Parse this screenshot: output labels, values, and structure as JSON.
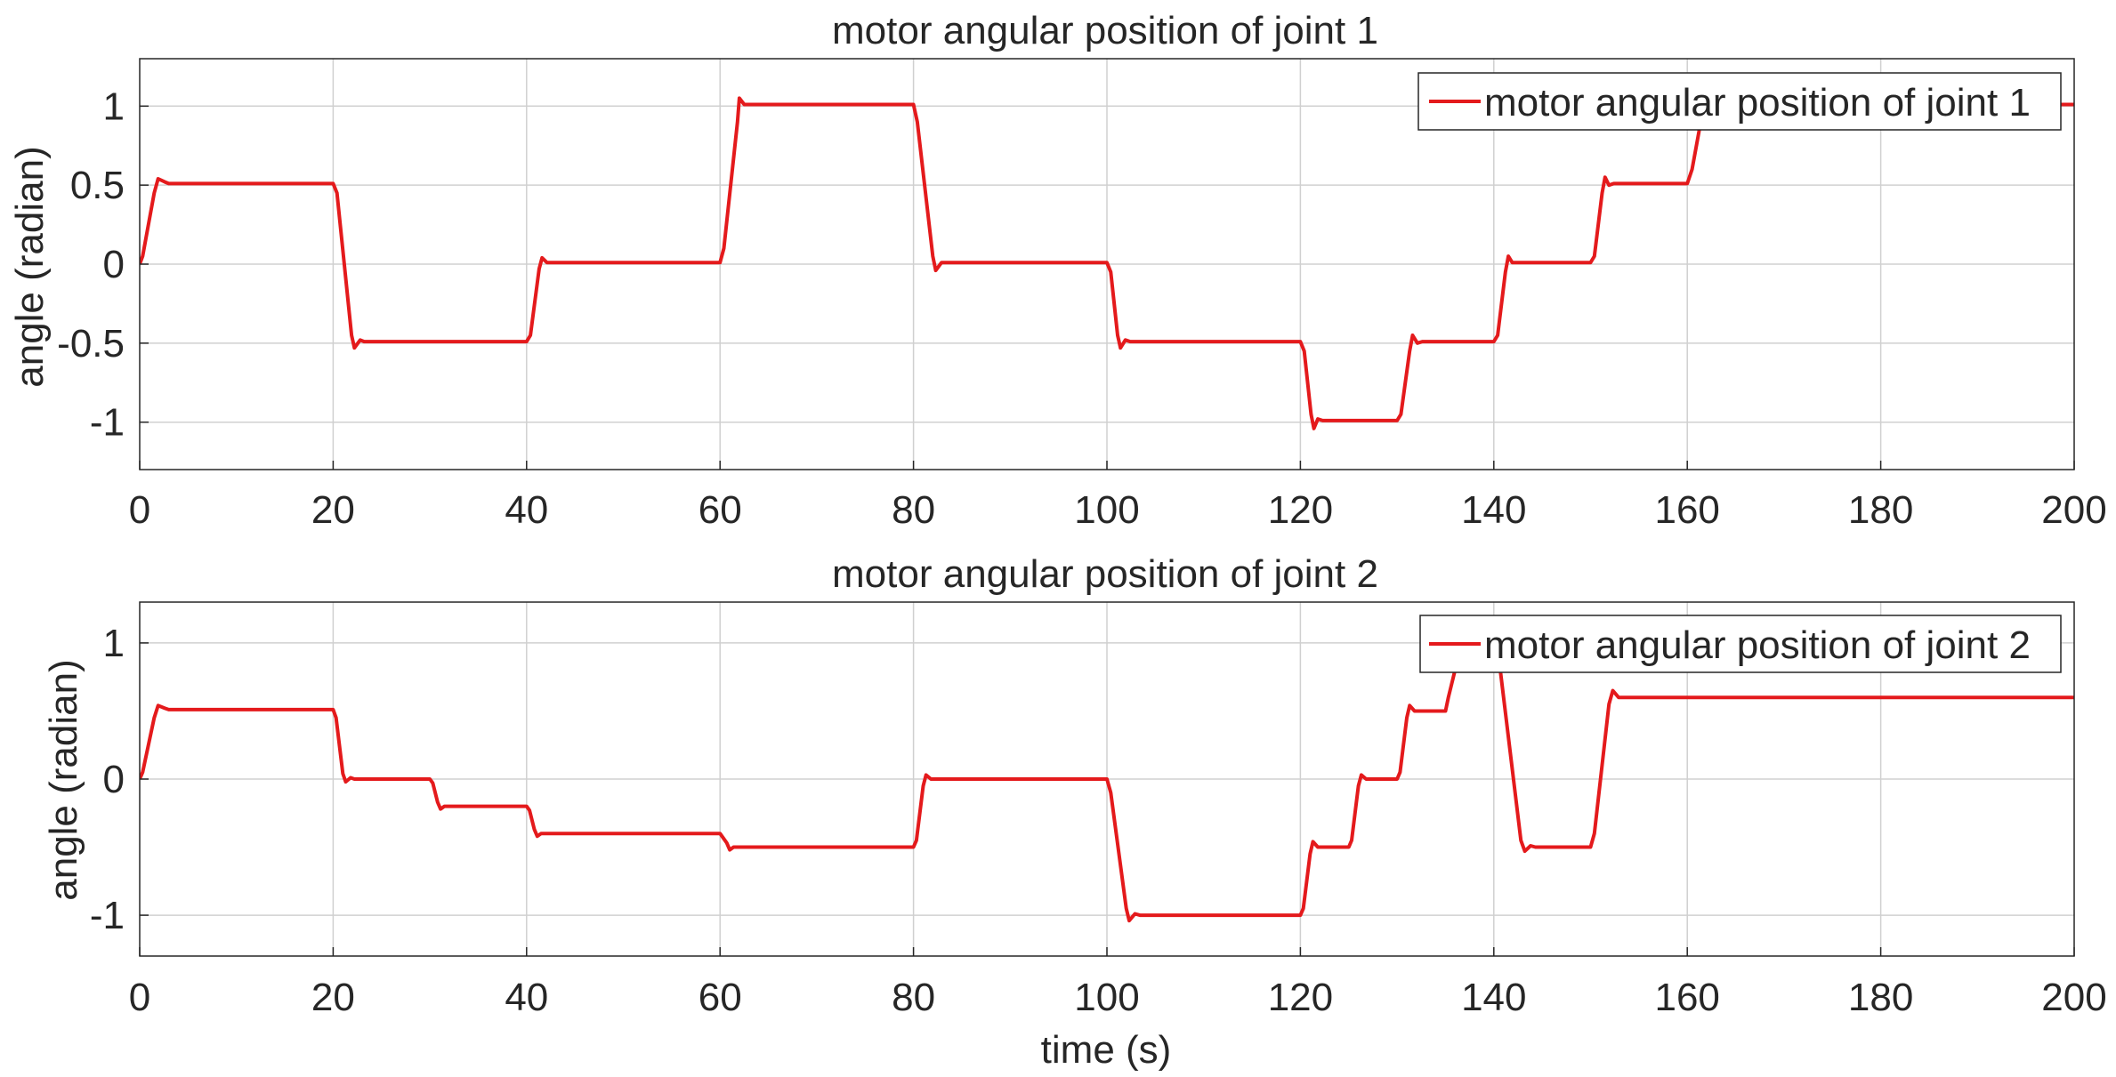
{
  "colors": {
    "series": "#e41a1c",
    "grid": "#d0d0d0",
    "axes": "#262626",
    "background": "#ffffff"
  },
  "chart_data": [
    {
      "type": "line",
      "title": "motor angular position of joint 1",
      "xlabel": "",
      "ylabel": "angle (radian)",
      "xlim": [
        0,
        200
      ],
      "ylim": [
        -1.3,
        1.3
      ],
      "xticks": [
        0,
        20,
        40,
        60,
        80,
        100,
        120,
        140,
        160,
        180,
        200
      ],
      "xtick_labels": [
        "0",
        "20",
        "40",
        "60",
        "80",
        "100",
        "120",
        "140",
        "160",
        "180",
        "200"
      ],
      "yticks": [
        -1,
        -0.5,
        0,
        0.5,
        1
      ],
      "ytick_labels": [
        "-1",
        "-0.5",
        "0",
        "0.5",
        "1"
      ],
      "grid": true,
      "legend": {
        "position": "top-right",
        "entries": [
          "motor angular position of joint 1"
        ]
      },
      "series": [
        {
          "name": "motor angular position of joint 1",
          "x": [
            0,
            0.3,
            1.5,
            1.9,
            2.6,
            3,
            20,
            20.4,
            21.9,
            22.2,
            22.8,
            23.2,
            40,
            40.4,
            41.3,
            41.6,
            42.1,
            42.6,
            60,
            60.4,
            61.8,
            62,
            62.5,
            63,
            80,
            80.4,
            82,
            82.3,
            82.9,
            83.4,
            100,
            100.4,
            101.1,
            101.4,
            101.9,
            102.4,
            120,
            120.4,
            121.1,
            121.4,
            121.8,
            122.3,
            130,
            130.4,
            131.3,
            131.6,
            132.1,
            132.6,
            140,
            140.4,
            141.2,
            141.5,
            141.9,
            142.4,
            150,
            150.4,
            151.2,
            151.5,
            151.9,
            152.4,
            160,
            160.5,
            161.6,
            162,
            200
          ],
          "y": [
            0,
            0.05,
            0.45,
            0.54,
            0.52,
            0.51,
            0.51,
            0.45,
            -0.45,
            -0.53,
            -0.48,
            -0.49,
            -0.49,
            -0.45,
            -0.03,
            0.04,
            0.01,
            0.01,
            0.01,
            0.1,
            0.9,
            1.05,
            1.01,
            1.01,
            1.01,
            0.9,
            0.05,
            -0.04,
            0.01,
            0.01,
            0.01,
            -0.05,
            -0.45,
            -0.53,
            -0.48,
            -0.49,
            -0.49,
            -0.55,
            -0.95,
            -1.04,
            -0.98,
            -0.99,
            -0.99,
            -0.95,
            -0.55,
            -0.45,
            -0.5,
            -0.49,
            -0.49,
            -0.45,
            -0.05,
            0.05,
            0.01,
            0.01,
            0.01,
            0.05,
            0.45,
            0.55,
            0.5,
            0.51,
            0.51,
            0.6,
            0.97,
            1.01,
            1.01
          ]
        }
      ]
    },
    {
      "type": "line",
      "title": "motor angular position of joint 2",
      "xlabel": "time (s)",
      "ylabel": "angle (radian)",
      "xlim": [
        0,
        200
      ],
      "ylim": [
        -1.3,
        1.3
      ],
      "xticks": [
        0,
        20,
        40,
        60,
        80,
        100,
        120,
        140,
        160,
        180,
        200
      ],
      "xtick_labels": [
        "0",
        "20",
        "40",
        "60",
        "80",
        "100",
        "120",
        "140",
        "160",
        "180",
        "200"
      ],
      "yticks": [
        -1,
        0,
        1
      ],
      "ytick_labels": [
        "-1",
        "0",
        "1"
      ],
      "grid": true,
      "legend": {
        "position": "top-right",
        "entries": [
          "motor angular position of joint 2"
        ]
      },
      "series": [
        {
          "name": "motor angular position of joint 2",
          "x": [
            0,
            0.3,
            1.5,
            1.9,
            2.6,
            3,
            20,
            20.3,
            21,
            21.3,
            21.8,
            22.2,
            30,
            30.3,
            30.8,
            31.1,
            31.5,
            32,
            40,
            40.3,
            40.8,
            41.1,
            41.5,
            42,
            60,
            60.3,
            60.7,
            61,
            61.4,
            61.8,
            80,
            80.3,
            81,
            81.3,
            81.8,
            82.3,
            100,
            100.4,
            102,
            102.3,
            102.9,
            103.4,
            120,
            120.3,
            121,
            121.3,
            121.8,
            122.3,
            125,
            125.3,
            126,
            126.3,
            126.8,
            127.3,
            130,
            130.3,
            131,
            131.3,
            131.8,
            132.3,
            135,
            135.3,
            136.5,
            138,
            140,
            140.5,
            142.8,
            143.2,
            143.8,
            144.3,
            150,
            150.4,
            151.9,
            152.3,
            152.9,
            153.4,
            200
          ],
          "y": [
            0,
            0.05,
            0.45,
            0.54,
            0.52,
            0.51,
            0.51,
            0.45,
            0.04,
            -0.02,
            0.01,
            0,
            0,
            -0.03,
            -0.17,
            -0.22,
            -0.2,
            -0.2,
            -0.2,
            -0.23,
            -0.37,
            -0.42,
            -0.4,
            -0.4,
            -0.4,
            -0.43,
            -0.47,
            -0.52,
            -0.5,
            -0.5,
            -0.5,
            -0.45,
            -0.05,
            0.03,
            0,
            0,
            0,
            -0.1,
            -0.95,
            -1.04,
            -0.99,
            -1,
            -1,
            -0.95,
            -0.55,
            -0.46,
            -0.5,
            -0.5,
            -0.5,
            -0.45,
            -0.05,
            0.03,
            0,
            0,
            0,
            0.05,
            0.45,
            0.54,
            0.5,
            0.5,
            0.5,
            0.6,
            0.95,
            1.08,
            1.05,
            0.9,
            -0.45,
            -0.53,
            -0.49,
            -0.5,
            -0.5,
            -0.4,
            0.55,
            0.65,
            0.6,
            0.6,
            0.6
          ]
        }
      ]
    }
  ]
}
